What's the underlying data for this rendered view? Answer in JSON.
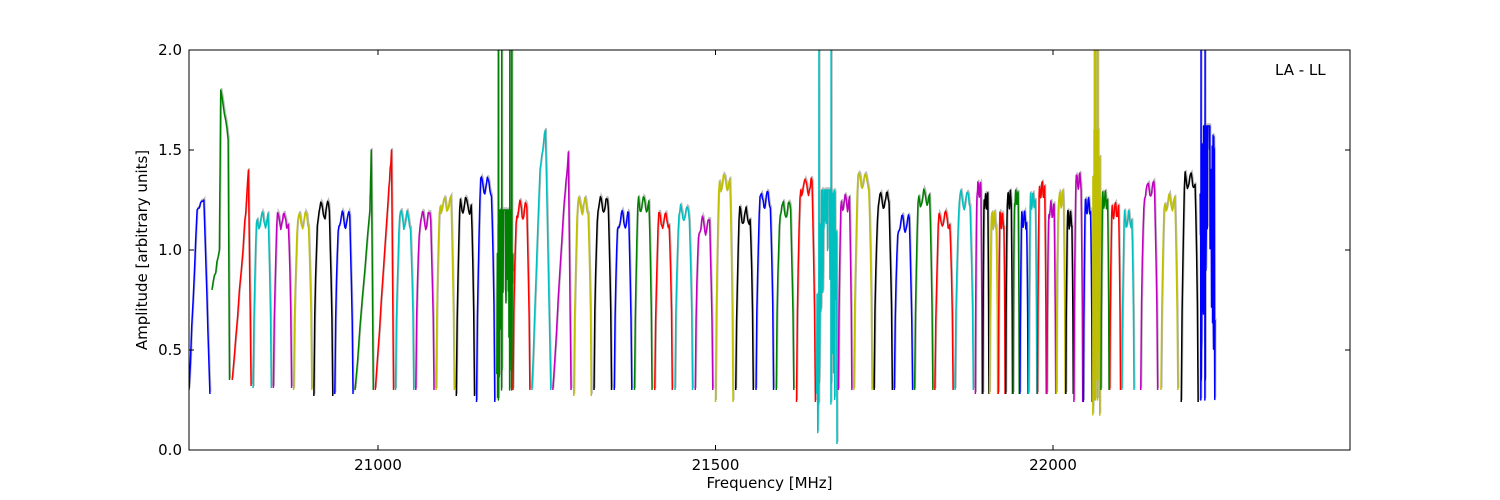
{
  "chart_data": {
    "type": "line",
    "title": "",
    "annotation": "LA - LL",
    "xlabel": "Frequency [MHz]",
    "ylabel": "Amplitude [arbitrary units]",
    "xlim": [
      20720,
      22440
    ],
    "ylim": [
      0.0,
      2.0
    ],
    "xticks": [
      21000,
      21500,
      22000
    ],
    "yticks": [
      0.0,
      0.5,
      1.0,
      1.5,
      2.0
    ],
    "xtick_labels": [
      "21000",
      "21500",
      "22000"
    ],
    "ytick_labels": [
      "0.0",
      "0.5",
      "1.0",
      "1.5",
      "2.0"
    ],
    "grid": false,
    "legend": "none",
    "colors": {
      "b": "#0000ff",
      "g": "#008000",
      "r": "#ff0000",
      "c": "#00bfbf",
      "m": "#bf00bf",
      "y": "#bfbf00",
      "k": "#000000",
      "shadow": "#bbbbbb"
    },
    "color_cycle": [
      "b",
      "g",
      "r",
      "c",
      "m",
      "y",
      "k"
    ],
    "series": [
      {
        "color": "b",
        "range": [
          20720,
          20751
        ],
        "lo": 0.3,
        "hi": 1.22,
        "x": [
          20720,
          20732,
          20742,
          20751
        ],
        "y": [
          0.3,
          1.2,
          1.25,
          0.28
        ]
      },
      {
        "color": "g",
        "range": [
          20754,
          20780
        ],
        "lo": 0.55,
        "hi": 1.55,
        "x": [
          20754,
          20765,
          20767,
          20778,
          20780
        ],
        "y": [
          0.8,
          1.0,
          1.8,
          1.55,
          0.35
        ]
      },
      {
        "color": "r",
        "range": [
          20784,
          20812
        ],
        "lo": 0.3,
        "hi": 1.25,
        "x": [
          20784,
          20800,
          20808,
          20812
        ],
        "y": [
          0.35,
          1.0,
          1.4,
          0.32
        ]
      },
      {
        "color": "c",
        "range": [
          20815,
          20842
        ],
        "lo": 0.31,
        "hi": 1.2
      },
      {
        "color": "m",
        "range": [
          20845,
          20872
        ],
        "lo": 0.31,
        "hi": 1.2
      },
      {
        "color": "y",
        "range": [
          20875,
          20902
        ],
        "lo": 0.3,
        "hi": 1.2
      },
      {
        "color": "k",
        "range": [
          20905,
          20933
        ],
        "lo": 0.27,
        "hi": 1.25
      },
      {
        "color": "b",
        "range": [
          20936,
          20963
        ],
        "lo": 0.28,
        "hi": 1.2
      },
      {
        "color": "g",
        "range": [
          20966,
          20993
        ],
        "lo": 0.3,
        "hi": 1.3,
        "x": [
          20966,
          20988,
          20990,
          20993
        ],
        "y": [
          0.3,
          1.2,
          1.5,
          0.3
        ]
      },
      {
        "color": "r",
        "range": [
          20996,
          21023
        ],
        "lo": 0.3,
        "hi": 1.4,
        "x": [
          20996,
          21014,
          21020,
          21023
        ],
        "y": [
          0.3,
          1.2,
          1.5,
          0.3
        ]
      },
      {
        "color": "c",
        "range": [
          21026,
          21053
        ],
        "lo": 0.3,
        "hi": 1.2
      },
      {
        "color": "m",
        "range": [
          21056,
          21083
        ],
        "lo": 0.3,
        "hi": 1.2
      },
      {
        "color": "y",
        "range": [
          21086,
          21113
        ],
        "lo": 0.3,
        "hi": 1.28
      },
      {
        "color": "k",
        "range": [
          21116,
          21143
        ],
        "lo": 0.27,
        "hi": 1.27
      },
      {
        "color": "b",
        "range": [
          21146,
          21173
        ],
        "lo": 0.24,
        "hi": 1.37
      },
      {
        "color": "g",
        "range": [
          21176,
          21200
        ],
        "lo": 0.1,
        "hi": 1.2,
        "special": "noise",
        "spikes": [
          21178,
          21183,
          21195,
          21198
        ]
      },
      {
        "color": "r",
        "range": [
          21200,
          21225
        ],
        "lo": 0.3,
        "hi": 1.25
      },
      {
        "color": "c",
        "range": [
          21228,
          21256
        ],
        "lo": 0.3,
        "hi": 1.6,
        "x": [
          21228,
          21240,
          21248,
          21256
        ],
        "y": [
          0.3,
          1.4,
          1.6,
          0.3
        ]
      },
      {
        "color": "m",
        "range": [
          21259,
          21286
        ],
        "lo": 0.3,
        "hi": 1.49,
        "x": [
          21259,
          21275,
          21282,
          21286
        ],
        "y": [
          0.3,
          1.2,
          1.49,
          0.3
        ]
      },
      {
        "color": "y",
        "range": [
          21290,
          21316
        ],
        "lo": 0.27,
        "hi": 1.27
      },
      {
        "color": "k",
        "range": [
          21320,
          21346
        ],
        "lo": 0.3,
        "hi": 1.27
      },
      {
        "color": "b",
        "range": [
          21350,
          21376
        ],
        "lo": 0.3,
        "hi": 1.2
      },
      {
        "color": "g",
        "range": [
          21380,
          21406
        ],
        "lo": 0.3,
        "hi": 1.28
      },
      {
        "color": "r",
        "range": [
          21410,
          21436
        ],
        "lo": 0.3,
        "hi": 1.2
      },
      {
        "color": "c",
        "range": [
          21440,
          21466
        ],
        "lo": 0.3,
        "hi": 1.23
      },
      {
        "color": "m",
        "range": [
          21470,
          21496
        ],
        "lo": 0.3,
        "hi": 1.17
      },
      {
        "color": "y",
        "range": [
          21500,
          21526
        ],
        "lo": 0.24,
        "hi": 1.39
      },
      {
        "color": "k",
        "range": [
          21530,
          21556
        ],
        "lo": 0.3,
        "hi": 1.22
      },
      {
        "color": "b",
        "range": [
          21560,
          21586
        ],
        "lo": 0.3,
        "hi": 1.3
      },
      {
        "color": "g",
        "range": [
          21590,
          21616
        ],
        "lo": 0.3,
        "hi": 1.25
      },
      {
        "color": "r",
        "range": [
          21620,
          21648
        ],
        "lo": 0.24,
        "hi": 1.37
      },
      {
        "color": "c",
        "range": [
          21650,
          21680
        ],
        "lo": 0.03,
        "hi": 1.3,
        "special": "noise",
        "spikes": [
          21653,
          21671
        ]
      },
      {
        "color": "m",
        "range": [
          21682,
          21702
        ],
        "lo": 0.3,
        "hi": 1.29
      },
      {
        "color": "y",
        "range": [
          21705,
          21732
        ],
        "lo": 0.3,
        "hi": 1.4
      },
      {
        "color": "k",
        "range": [
          21735,
          21762
        ],
        "lo": 0.3,
        "hi": 1.3
      },
      {
        "color": "b",
        "range": [
          21765,
          21792
        ],
        "lo": 0.3,
        "hi": 1.18
      },
      {
        "color": "g",
        "range": [
          21795,
          21822
        ],
        "lo": 0.3,
        "hi": 1.31
      },
      {
        "color": "r",
        "range": [
          21825,
          21852
        ],
        "lo": 0.3,
        "hi": 1.2
      },
      {
        "color": "c",
        "range": [
          21855,
          21882
        ],
        "lo": 0.3,
        "hi": 1.3
      },
      {
        "color": "m",
        "range": [
          21885,
          21895
        ],
        "lo": 0.28,
        "hi": 1.35
      },
      {
        "color": "k",
        "range": [
          21896,
          21905
        ],
        "lo": 0.28,
        "hi": 1.3
      },
      {
        "color": "y",
        "range": [
          21906,
          21918
        ],
        "lo": 0.28,
        "hi": 1.2
      },
      {
        "color": "r",
        "range": [
          21919,
          21929
        ],
        "lo": 0.28,
        "hi": 1.2
      },
      {
        "color": "k",
        "range": [
          21930,
          21940
        ],
        "lo": 0.28,
        "hi": 1.3
      },
      {
        "color": "g",
        "range": [
          21941,
          21950
        ],
        "lo": 0.28,
        "hi": 1.31
      },
      {
        "color": "b",
        "range": [
          21951,
          21963
        ],
        "lo": 0.28,
        "hi": 1.2
      },
      {
        "color": "c",
        "range": [
          21964,
          21976
        ],
        "lo": 0.28,
        "hi": 1.3
      },
      {
        "color": "r",
        "range": [
          21977,
          21990
        ],
        "lo": 0.28,
        "hi": 1.35
      },
      {
        "color": "m",
        "range": [
          21991,
          22004
        ],
        "lo": 0.28,
        "hi": 1.25
      },
      {
        "color": "y",
        "range": [
          22005,
          22018
        ],
        "lo": 0.28,
        "hi": 1.3
      },
      {
        "color": "k",
        "range": [
          22019,
          22030
        ],
        "lo": 0.28,
        "hi": 1.2
      },
      {
        "color": "m",
        "range": [
          22031,
          22044
        ],
        "lo": 0.24,
        "hi": 1.39
      },
      {
        "color": "b",
        "range": [
          22045,
          22058
        ],
        "lo": 0.24,
        "hi": 1.27
      },
      {
        "color": "y",
        "range": [
          22059,
          22070
        ],
        "lo": 0.05,
        "hi": 1.6,
        "special": "noise",
        "spikes": [
          22061,
          22063,
          22066
        ]
      },
      {
        "color": "g",
        "range": [
          22071,
          22083
        ],
        "lo": 0.3,
        "hi": 1.3
      },
      {
        "color": "r",
        "range": [
          22084,
          22100
        ],
        "lo": 0.3,
        "hi": 1.25
      },
      {
        "color": "c",
        "range": [
          22102,
          22120
        ],
        "lo": 0.3,
        "hi": 1.2
      },
      {
        "color": "m",
        "range": [
          22130,
          22155
        ],
        "lo": 0.3,
        "hi": 1.35
      },
      {
        "color": "y",
        "range": [
          22160,
          22185
        ],
        "lo": 0.3,
        "hi": 1.29
      },
      {
        "color": "k",
        "range": [
          22190,
          22215
        ],
        "lo": 0.24,
        "hi": 1.4
      },
      {
        "color": "b",
        "range": [
          22218,
          22240
        ],
        "lo": 0.05,
        "hi": 1.62,
        "special": "noise",
        "spikes": [
          22219,
          22225
        ]
      }
    ]
  }
}
